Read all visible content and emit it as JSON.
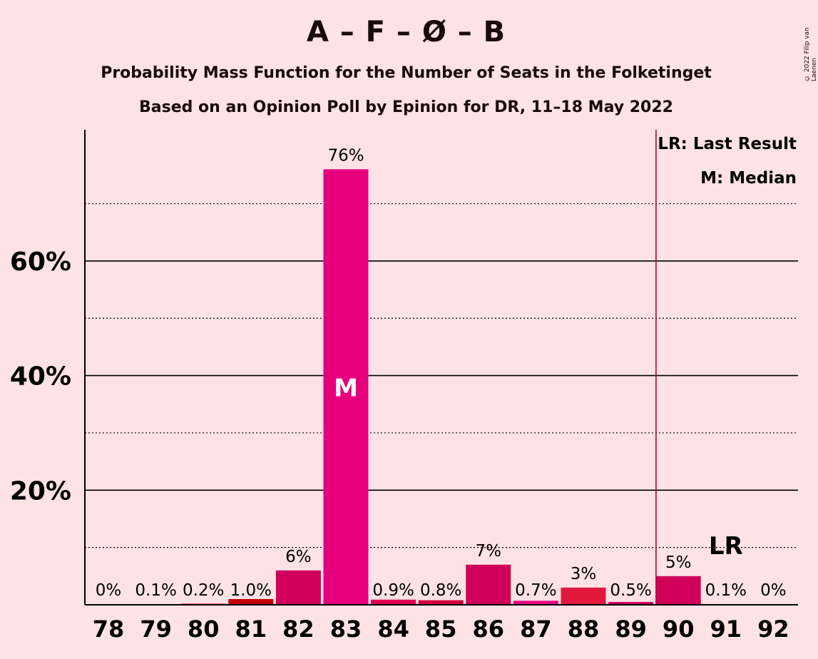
{
  "header": {
    "title": "A – F – Ø – B",
    "subtitle1": "Probability Mass Function for the Number of Seats in the Folketinget",
    "subtitle2": "Based on an Opinion Poll by Epinion for DR, 11–18 May 2022",
    "copyright": "© 2022 Filip van Laenen"
  },
  "legend": {
    "lr": "LR: Last Result",
    "median": "M: Median"
  },
  "chart_data": {
    "type": "bar",
    "categories": [
      "78",
      "79",
      "80",
      "81",
      "82",
      "83",
      "84",
      "85",
      "86",
      "87",
      "88",
      "89",
      "90",
      "91",
      "92"
    ],
    "values": [
      0,
      0.1,
      0.2,
      1.0,
      6,
      76,
      0.9,
      0.8,
      7,
      0.7,
      3,
      0.5,
      5,
      0.1,
      0
    ],
    "data_labels": [
      "0%",
      "0.1%",
      "0.2%",
      "1.0%",
      "6%",
      "76%",
      "0.9%",
      "0.8%",
      "7%",
      "0.7%",
      "3%",
      "0.5%",
      "5%",
      "0.1%",
      "0%"
    ],
    "bar_colors": [
      "#C8102E",
      "#C8102E",
      "#C8102E",
      "#C00000",
      "#D0005A",
      "#E6007E",
      "#E00052",
      "#D1003A",
      "#D0005A",
      "#E6007E",
      "#E2193D",
      "#D0005A",
      "#D0005A",
      "#C8102E",
      "#C8102E"
    ],
    "y_tick_labels": [
      "20%",
      "40%",
      "60%"
    ],
    "y_ticks": [
      20,
      40,
      60
    ],
    "y_minor_ticks": [
      10,
      30,
      50,
      70
    ],
    "ylim": [
      0,
      83
    ],
    "median_category": "83",
    "median_label": "M",
    "last_result_category": "90",
    "last_result_label": "LR",
    "last_result_line_color": "#B0003A",
    "grid": true,
    "legend_placement": "top-right"
  }
}
